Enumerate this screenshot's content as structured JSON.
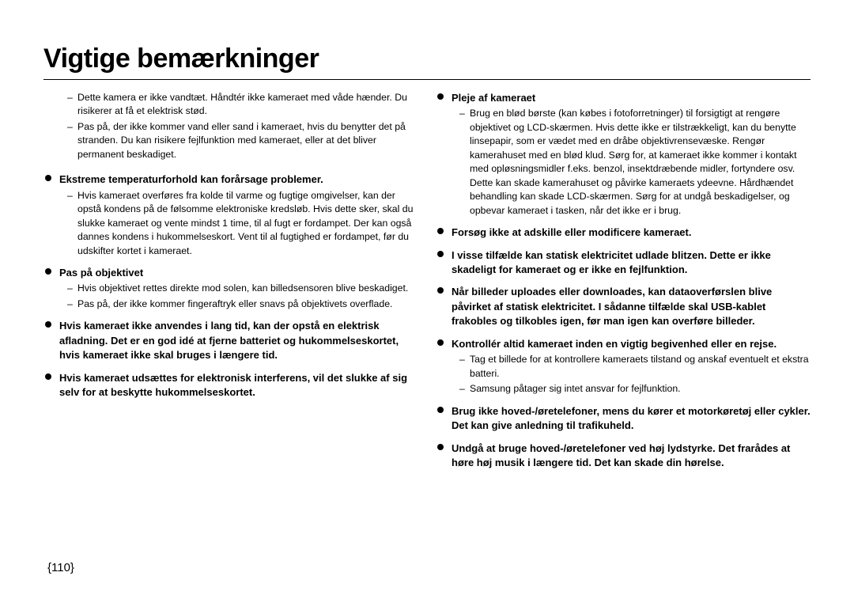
{
  "title": "Vigtige bemærkninger",
  "page_number": "{110}",
  "col1": {
    "intro_dashes": [
      "Dette kamera er ikke vandtæt. Håndtér ikke kameraet med våde hænder. Du risikerer at få et elektrisk stød.",
      "Pas på, der ikke kommer vand eller sand i kameraet, hvis du benytter det på stranden. Du kan risikere fejlfunktion med kameraet, eller at det bliver permanent beskadiget."
    ],
    "b1": {
      "head": "Ekstreme temperaturforhold kan forårsage problemer.",
      "items": [
        "Hvis kameraet overføres fra kolde til varme og fugtige omgivelser, kan der opstå kondens på de følsomme elektroniske kredsløb. Hvis dette sker, skal du slukke kameraet og vente mindst 1 time, til al fugt er fordampet. Der kan også dannes kondens i hukommelseskort. Vent til al fugtighed er fordampet, før du udskifter kortet i kameraet."
      ]
    },
    "b2": {
      "head": "Pas på objektivet",
      "items": [
        "Hvis objektivet rettes direkte mod solen, kan billedsensoren blive beskadiget.",
        "Pas på, der ikke kommer fingeraftryk eller snavs på objektivets overflade."
      ]
    },
    "b3": {
      "head": "Hvis kameraet ikke anvendes i lang tid, kan der opstå en elektrisk afladning. Det er en god idé at fjerne batteriet og hukommelseskortet, hvis kameraet ikke skal bruges i længere tid."
    },
    "b4": {
      "head": "Hvis kameraet udsættes for elektronisk interferens, vil det slukke af sig selv for at beskytte hukommelseskortet."
    }
  },
  "col2": {
    "b1": {
      "head": "Pleje af kameraet",
      "items": [
        "Brug en blød børste (kan købes i fotoforretninger) til forsigtigt at rengøre objektivet og LCD-skærmen. Hvis dette ikke er tilstrækkeligt, kan du benytte linsepapir, som er vædet med en dråbe objektivrensevæske. Rengør kamerahuset med en blød klud. Sørg for, at kameraet ikke kommer i kontakt med opløsningsmidler f.eks. benzol, insektdræbende midler, fortyndere osv. Dette kan skade kamerahuset og påvirke kameraets ydeevne. Hårdhændet behandling kan skade LCD-skærmen. Sørg for at undgå beskadigelser, og opbevar kameraet i tasken, når det ikke er i brug."
      ]
    },
    "b2": {
      "head": "Forsøg ikke at adskille eller modificere kameraet."
    },
    "b3": {
      "head": "I visse tilfælde kan statisk elektricitet udlade blitzen. Dette er ikke skadeligt for kameraet og er ikke en fejlfunktion."
    },
    "b4": {
      "head": "Når billeder uploades eller downloades, kan dataoverførslen blive påvirket af statisk elektricitet. I sådanne tilfælde skal USB-kablet frakobles og tilkobles igen, før man igen kan overføre billeder."
    },
    "b5": {
      "head": "Kontrollér altid kameraet inden en vigtig begivenhed eller en rejse.",
      "items": [
        "Tag et billede for at kontrollere kameraets tilstand og anskaf eventuelt et ekstra batteri.",
        "Samsung påtager sig intet ansvar for fejlfunktion."
      ]
    },
    "b6": {
      "head": "Brug ikke hoved-/øretelefoner, mens du kører et motorkøretøj eller cykler. Det kan give anledning til trafikuheld."
    },
    "b7": {
      "head": "Undgå at bruge hoved-/øretelefoner ved høj lydstyrke. Det frarådes at høre høj musik i længere tid. Det kan skade din hørelse."
    }
  }
}
